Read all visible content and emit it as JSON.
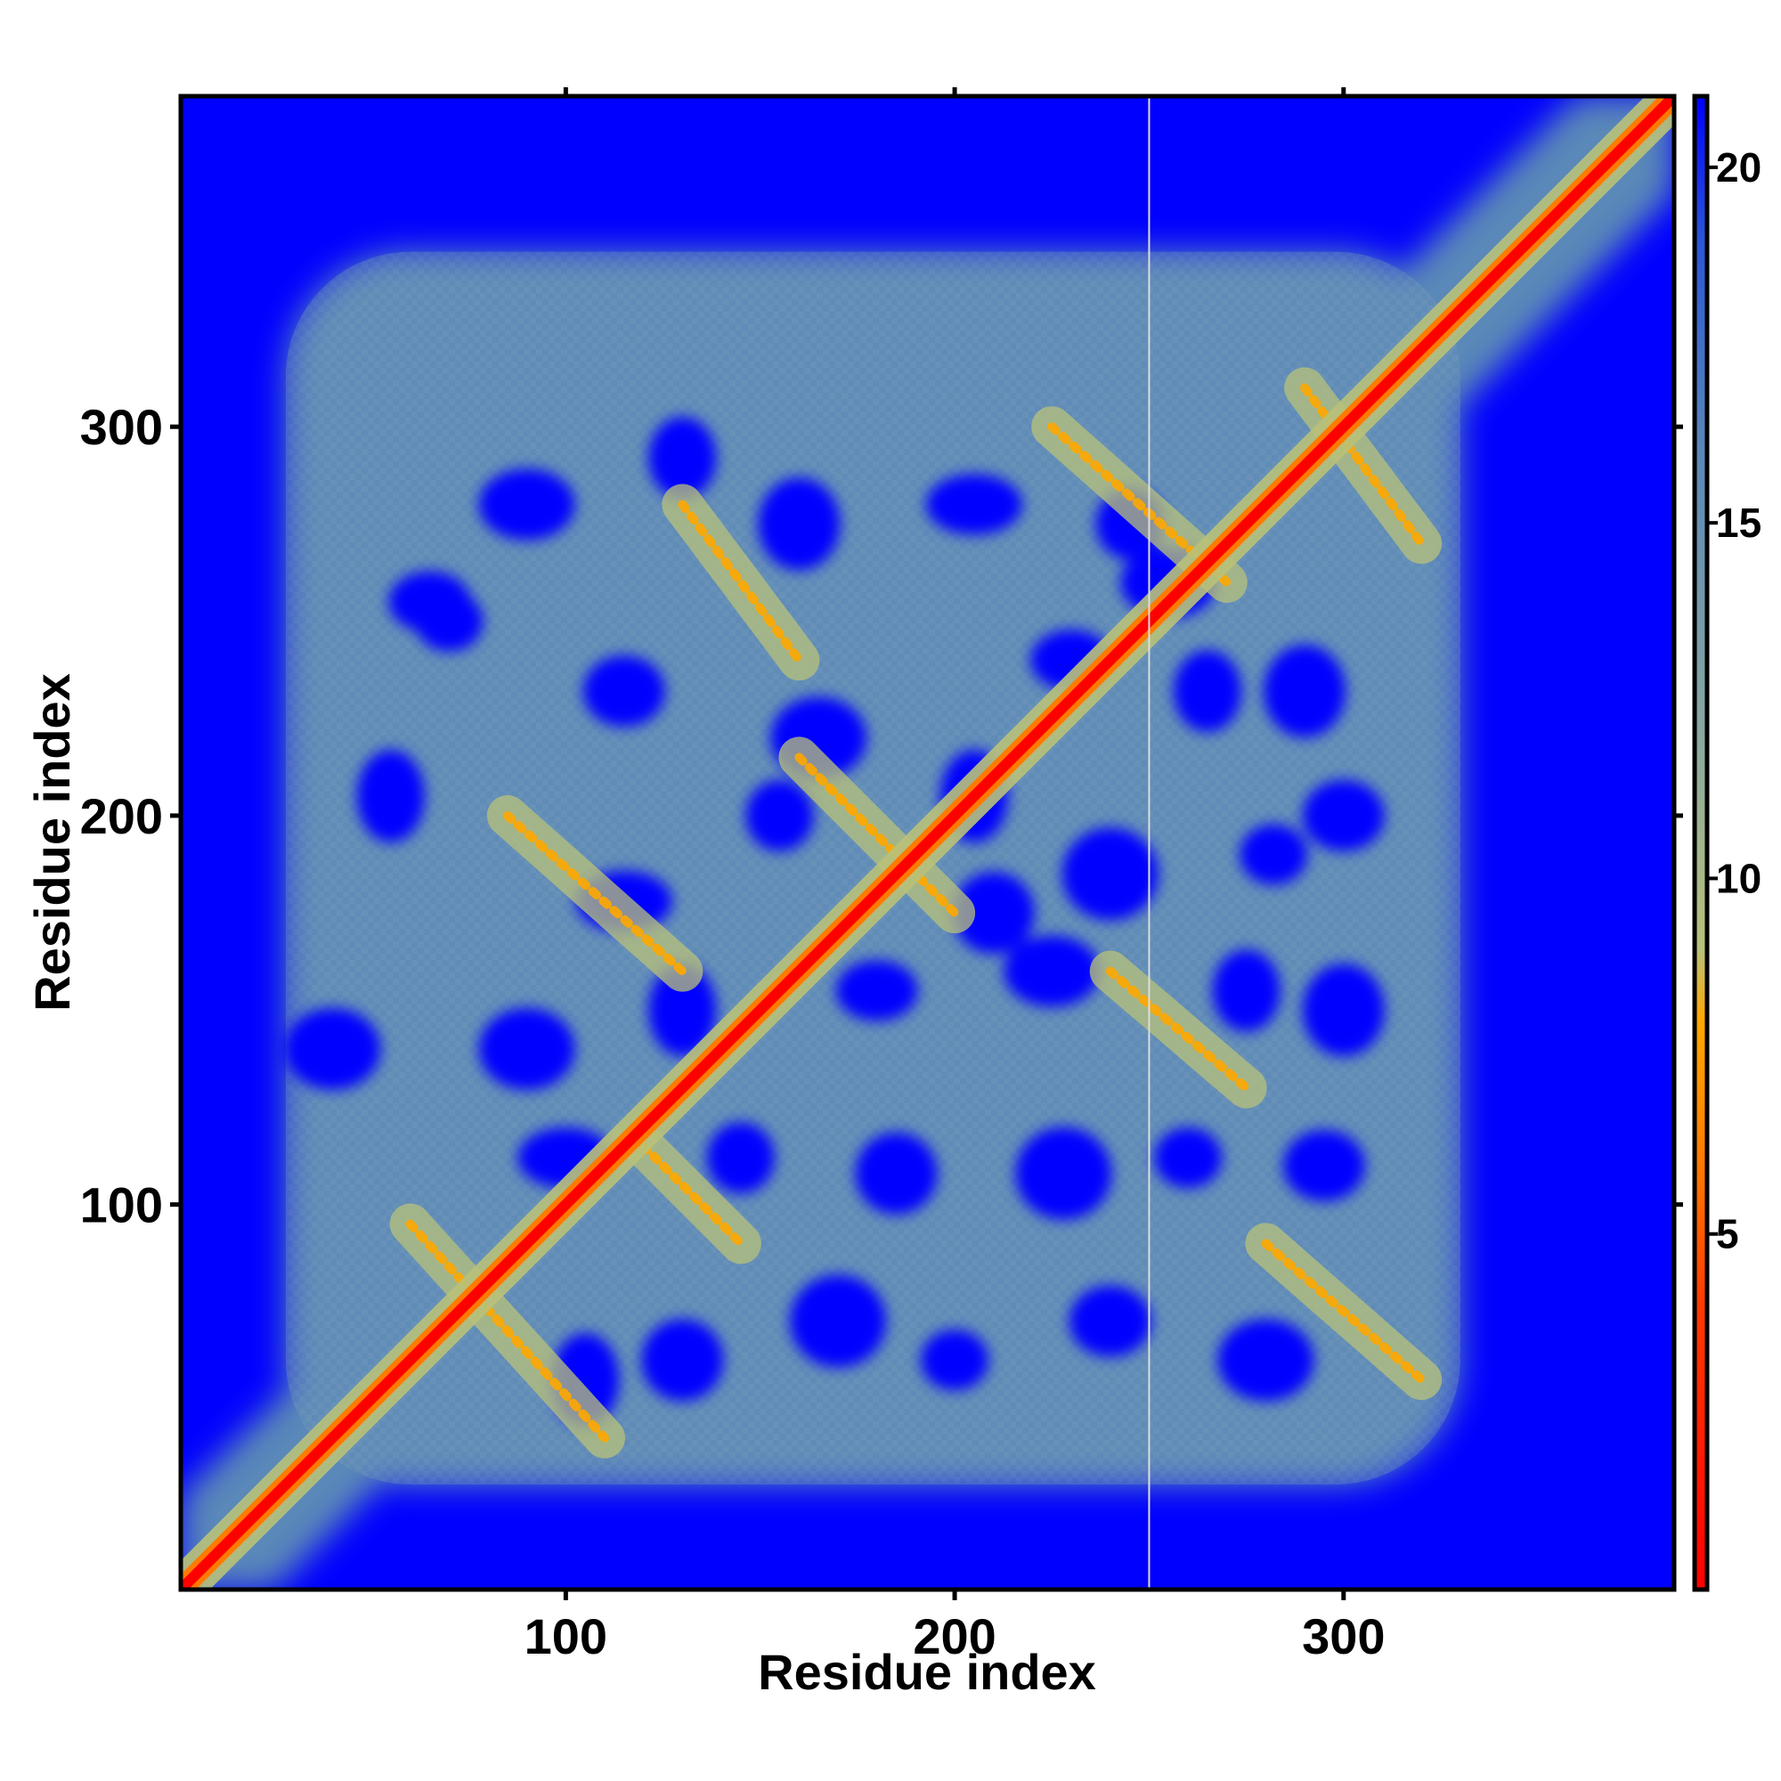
{
  "chart_data": {
    "type": "heatmap",
    "title": "",
    "xlabel": "Residue index",
    "ylabel": "Residue index",
    "xlim": [
      1,
      385
    ],
    "ylim": [
      1,
      385
    ],
    "xticks": [
      100,
      200,
      300
    ],
    "yticks": [
      100,
      200,
      300
    ],
    "grid": false,
    "legend": "none",
    "colorbar": {
      "position": "right",
      "range": [
        0,
        21
      ],
      "ticks": [
        5,
        10,
        15,
        20
      ],
      "stops": [
        {
          "value": 0,
          "color": "#ff0000"
        },
        {
          "value": 4,
          "color": "#ff3a00"
        },
        {
          "value": 6,
          "color": "#ff7a00"
        },
        {
          "value": 8,
          "color": "#ffa800"
        },
        {
          "value": 9,
          "color": "#b9c27a"
        },
        {
          "value": 12,
          "color": "#8aa8a0"
        },
        {
          "value": 16,
          "color": "#5a88b8"
        },
        {
          "value": 19,
          "color": "#2a55d8"
        },
        {
          "value": 21,
          "color": "#0000ff"
        }
      ]
    },
    "description_values": {
      "diagonal_distance": 0,
      "background_distance": 21,
      "contact_band_distance": 8,
      "midrange_distance": 16
    },
    "contact_bands": [
      {
        "x": [
          10,
          110
        ],
        "y": [
          10,
          110
        ],
        "kind": "diagonal"
      },
      {
        "x": [
          60,
          110
        ],
        "y": [
          40,
          95
        ]
      },
      {
        "x": [
          130,
          160
        ],
        "y": [
          240,
          280
        ]
      },
      {
        "x": [
          160,
          200
        ],
        "y": [
          175,
          215
        ]
      },
      {
        "x": [
          225,
          270
        ],
        "y": [
          260,
          300
        ]
      },
      {
        "x": [
          290,
          320
        ],
        "y": [
          270,
          310
        ]
      },
      {
        "x": [
          280,
          320
        ],
        "y": [
          55,
          90
        ]
      },
      {
        "x": [
          240,
          275
        ],
        "y": [
          130,
          160
        ]
      },
      {
        "x": [
          85,
          130
        ],
        "y": [
          160,
          200
        ]
      },
      {
        "x": [
          120,
          145
        ],
        "y": [
          90,
          115
        ]
      }
    ],
    "vertical_line_x": 250
  }
}
